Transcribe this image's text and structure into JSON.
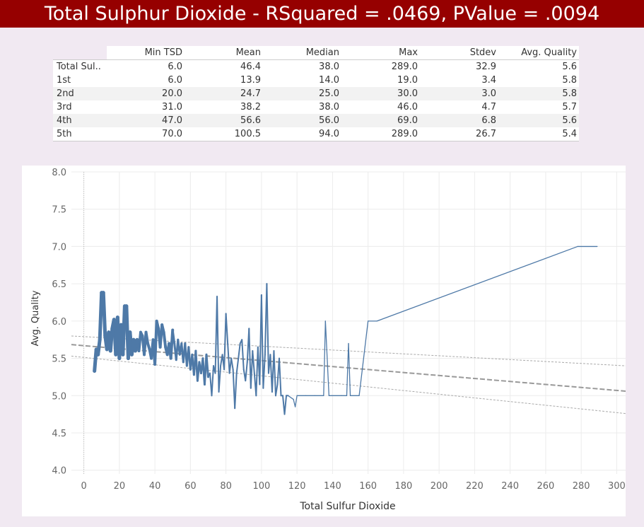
{
  "title": "Total Sulphur Dioxide - RSquared = .0469, PValue = .0094",
  "table": {
    "columns": [
      "Min TSD",
      "Mean",
      "Median",
      "Max",
      "Stdev",
      "Avg. Quality"
    ],
    "rows": [
      {
        "label": "Total Sul..",
        "cells": [
          "6.0",
          "46.4",
          "38.0",
          "289.0",
          "32.9",
          "5.6"
        ]
      },
      {
        "label": "1st",
        "cells": [
          "6.0",
          "13.9",
          "14.0",
          "19.0",
          "3.4",
          "5.8"
        ]
      },
      {
        "label": "2nd",
        "cells": [
          "20.0",
          "24.7",
          "25.0",
          "30.0",
          "3.0",
          "5.8"
        ]
      },
      {
        "label": "3rd",
        "cells": [
          "31.0",
          "38.2",
          "38.0",
          "46.0",
          "4.7",
          "5.7"
        ]
      },
      {
        "label": "4th",
        "cells": [
          "47.0",
          "56.6",
          "56.0",
          "69.0",
          "6.8",
          "5.6"
        ]
      },
      {
        "label": "5th",
        "cells": [
          "70.0",
          "100.5",
          "94.0",
          "289.0",
          "26.7",
          "5.4"
        ]
      }
    ]
  },
  "chart_data": {
    "type": "line",
    "xlabel": "Total Sulfur Dioxide",
    "ylabel": "Avg. Quality",
    "xlim": [
      -7,
      305
    ],
    "ylim": [
      3.95,
      8.0
    ],
    "xticks": [
      0,
      20,
      40,
      60,
      80,
      100,
      120,
      140,
      160,
      180,
      200,
      220,
      240,
      260,
      280,
      300
    ],
    "yticks": [
      4.0,
      4.5,
      5.0,
      5.5,
      6.0,
      6.5,
      7.0,
      7.5,
      8.0
    ],
    "grid": true,
    "line_color": "#4e79a7",
    "series": [
      {
        "points": [
          [
            6,
            5.33
          ],
          [
            7,
            5.62
          ],
          [
            8,
            5.55
          ],
          [
            9,
            5.75
          ],
          [
            10,
            6.38
          ],
          [
            11,
            6.38
          ],
          [
            12,
            5.8
          ],
          [
            13,
            5.62
          ],
          [
            14,
            5.85
          ],
          [
            15,
            5.6
          ],
          [
            16,
            5.9
          ],
          [
            17,
            6.02
          ],
          [
            18,
            5.55
          ],
          [
            19,
            6.05
          ],
          [
            20,
            5.5
          ],
          [
            21,
            5.95
          ],
          [
            22,
            5.55
          ],
          [
            23,
            6.2
          ],
          [
            24,
            6.2
          ],
          [
            25,
            5.5
          ],
          [
            26,
            5.85
          ],
          [
            27,
            5.55
          ],
          [
            28,
            5.75
          ],
          [
            29,
            5.6
          ],
          [
            30,
            5.75
          ],
          [
            31,
            5.6
          ],
          [
            32,
            5.85
          ],
          [
            33,
            5.8
          ],
          [
            34,
            5.55
          ],
          [
            35,
            5.85
          ],
          [
            36,
            5.7
          ],
          [
            37,
            5.62
          ],
          [
            38,
            5.5
          ],
          [
            39,
            5.75
          ],
          [
            40,
            5.42
          ],
          [
            41,
            6.0
          ],
          [
            42,
            5.9
          ],
          [
            43,
            5.65
          ],
          [
            44,
            5.95
          ],
          [
            45,
            5.85
          ],
          [
            46,
            5.65
          ],
          [
            47,
            5.55
          ],
          [
            48,
            5.7
          ],
          [
            49,
            5.5
          ],
          [
            50,
            5.88
          ],
          [
            51,
            5.7
          ],
          [
            52,
            5.48
          ],
          [
            53,
            5.75
          ],
          [
            54,
            5.55
          ],
          [
            55,
            5.7
          ],
          [
            56,
            5.45
          ],
          [
            57,
            5.7
          ],
          [
            58,
            5.4
          ],
          [
            59,
            5.65
          ],
          [
            60,
            5.35
          ],
          [
            61,
            5.55
          ],
          [
            62,
            5.28
          ],
          [
            63,
            5.6
          ],
          [
            64,
            5.2
          ],
          [
            65,
            5.45
          ],
          [
            66,
            5.3
          ],
          [
            67,
            5.5
          ],
          [
            68,
            5.15
          ],
          [
            69,
            5.55
          ],
          [
            70,
            5.25
          ],
          [
            71,
            5.3
          ],
          [
            72,
            5.0
          ],
          [
            73,
            5.4
          ],
          [
            74,
            5.3
          ],
          [
            75,
            6.33
          ],
          [
            76,
            5.05
          ],
          [
            77,
            5.4
          ],
          [
            78,
            5.55
          ],
          [
            79,
            5.35
          ],
          [
            80,
            6.1
          ],
          [
            81,
            5.7
          ],
          [
            82,
            5.3
          ],
          [
            83,
            5.5
          ],
          [
            84,
            5.35
          ],
          [
            85,
            4.83
          ],
          [
            86,
            5.3
          ],
          [
            87,
            5.5
          ],
          [
            88,
            5.7
          ],
          [
            89,
            5.75
          ],
          [
            90,
            5.35
          ],
          [
            91,
            5.2
          ],
          [
            92,
            5.45
          ],
          [
            93,
            5.9
          ],
          [
            94,
            5.1
          ],
          [
            95,
            5.6
          ],
          [
            96,
            5.3
          ],
          [
            97,
            5.0
          ],
          [
            98,
            5.65
          ],
          [
            99,
            5.15
          ],
          [
            100,
            6.35
          ],
          [
            101,
            5.1
          ],
          [
            102,
            5.55
          ],
          [
            103,
            6.5
          ],
          [
            104,
            5.3
          ],
          [
            105,
            5.55
          ],
          [
            106,
            5.05
          ],
          [
            107,
            5.6
          ],
          [
            108,
            5.0
          ],
          [
            109,
            5.15
          ],
          [
            110,
            5.5
          ],
          [
            111,
            5.0
          ],
          [
            112,
            5.0
          ],
          [
            113,
            4.75
          ],
          [
            114,
            5.0
          ],
          [
            115,
            5.0
          ],
          [
            118,
            4.95
          ],
          [
            119,
            4.85
          ],
          [
            120,
            5.0
          ],
          [
            125,
            5.0
          ],
          [
            130,
            5.0
          ],
          [
            135,
            5.0
          ],
          [
            136,
            6.0
          ],
          [
            138,
            5.0
          ],
          [
            145,
            5.0
          ],
          [
            148,
            5.0
          ],
          [
            149,
            5.7
          ],
          [
            150,
            5.0
          ],
          [
            155,
            5.0
          ],
          [
            160,
            6.0
          ],
          [
            165,
            6.0
          ],
          [
            278,
            7.0
          ],
          [
            289,
            7.0
          ]
        ]
      }
    ],
    "trend": {
      "slope": -0.002,
      "intercept": 5.67,
      "color": "#999999"
    },
    "confidence_band": {
      "upper": [
        [
          -7,
          5.8
        ],
        [
          305,
          5.4
        ]
      ],
      "lower": [
        [
          -7,
          5.53
        ],
        [
          305,
          4.76
        ]
      ]
    },
    "reference_line_x": 0
  }
}
